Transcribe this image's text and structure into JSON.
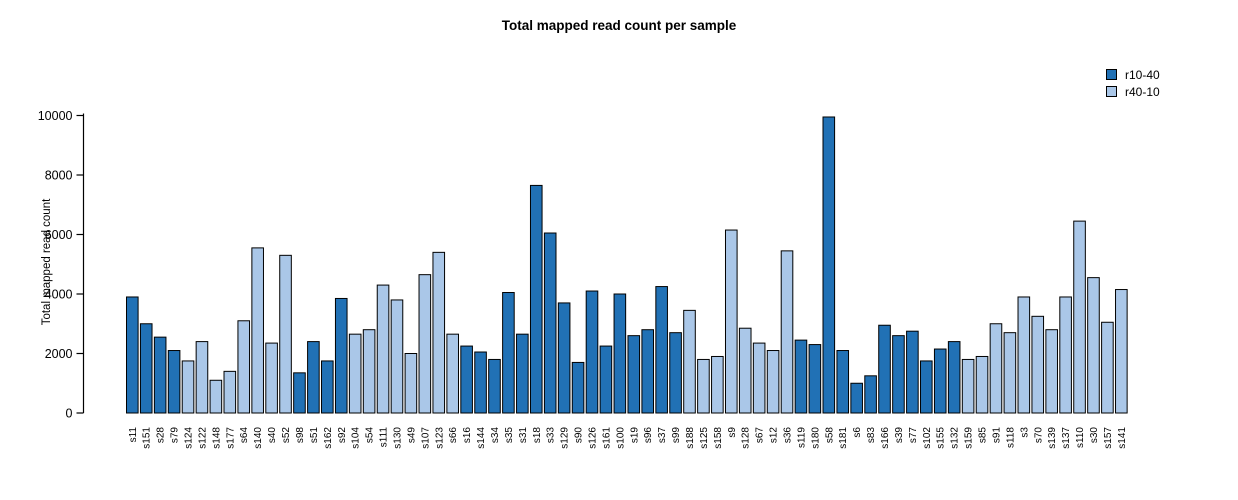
{
  "title": "Total mapped read count per sample",
  "ylabel": "Total mapped read count",
  "legend": [
    {
      "label": "r10-40",
      "color": "#2171b5"
    },
    {
      "label": "r40-10",
      "color": "#aac7e8"
    }
  ],
  "chart_data": {
    "type": "bar",
    "title": "Total mapped read count per sample",
    "xlabel": "",
    "ylabel": "Total mapped read count",
    "ylim": [
      0,
      10000
    ],
    "yticks": [
      0,
      2000,
      4000,
      6000,
      8000,
      10000
    ],
    "grid": false,
    "legend_position": "top-right",
    "bar_border_color": "#000000",
    "group_colors": {
      "r10-40": "#2171b5",
      "r40-10": "#aac7e8"
    },
    "categories": [
      "s11",
      "s151",
      "s28",
      "s79",
      "s124",
      "s122",
      "s148",
      "s177",
      "s64",
      "s140",
      "s40",
      "s52",
      "s98",
      "s51",
      "s162",
      "s92",
      "s104",
      "s54",
      "s111",
      "s130",
      "s49",
      "s107",
      "s123",
      "s66",
      "s16",
      "s144",
      "s34",
      "s35",
      "s31",
      "s18",
      "s33",
      "s129",
      "s90",
      "s126",
      "s161",
      "s100",
      "s19",
      "s96",
      "s37",
      "s99",
      "s188",
      "s125",
      "s158",
      "s9",
      "s128",
      "s67",
      "s12",
      "s36",
      "s119",
      "s180",
      "s58",
      "s181",
      "s6",
      "s83",
      "s166",
      "s39",
      "s77",
      "s102",
      "s155",
      "s132",
      "s159",
      "s85",
      "s91",
      "s118",
      "s3",
      "s70",
      "s139",
      "s137",
      "s110",
      "s30",
      "s157",
      "s141"
    ],
    "values": [
      3900,
      3000,
      2550,
      2100,
      1750,
      2400,
      1100,
      1400,
      3100,
      5550,
      2350,
      5300,
      1350,
      2400,
      1750,
      3850,
      2650,
      2800,
      4300,
      3800,
      2000,
      4650,
      5400,
      2650,
      2250,
      2050,
      1800,
      4050,
      2650,
      7650,
      6050,
      3700,
      1700,
      4100,
      2250,
      4000,
      2600,
      2800,
      4250,
      2700,
      3450,
      1800,
      1900,
      6150,
      2850,
      2350,
      2100,
      5450,
      2450,
      2300,
      9950,
      2100,
      1000,
      1250,
      2950,
      2600,
      2750,
      1750,
      2150,
      2400,
      1800,
      1900,
      3000,
      2700,
      3900,
      3250,
      2800,
      3900,
      6450,
      4550,
      3050,
      4150
    ],
    "groups": [
      "r10-40",
      "r10-40",
      "r10-40",
      "r10-40",
      "r40-10",
      "r40-10",
      "r40-10",
      "r40-10",
      "r40-10",
      "r40-10",
      "r40-10",
      "r40-10",
      "r10-40",
      "r10-40",
      "r10-40",
      "r10-40",
      "r40-10",
      "r40-10",
      "r40-10",
      "r40-10",
      "r40-10",
      "r40-10",
      "r40-10",
      "r40-10",
      "r10-40",
      "r10-40",
      "r10-40",
      "r10-40",
      "r10-40",
      "r10-40",
      "r10-40",
      "r10-40",
      "r10-40",
      "r10-40",
      "r10-40",
      "r10-40",
      "r10-40",
      "r10-40",
      "r10-40",
      "r10-40",
      "r40-10",
      "r40-10",
      "r40-10",
      "r40-10",
      "r40-10",
      "r40-10",
      "r40-10",
      "r40-10",
      "r10-40",
      "r10-40",
      "r10-40",
      "r10-40",
      "r10-40",
      "r10-40",
      "r10-40",
      "r10-40",
      "r10-40",
      "r10-40",
      "r10-40",
      "r10-40",
      "r40-10",
      "r40-10",
      "r40-10",
      "r40-10",
      "r40-10",
      "r40-10",
      "r40-10",
      "r40-10",
      "r40-10",
      "r40-10",
      "r40-10",
      "r40-10"
    ]
  }
}
